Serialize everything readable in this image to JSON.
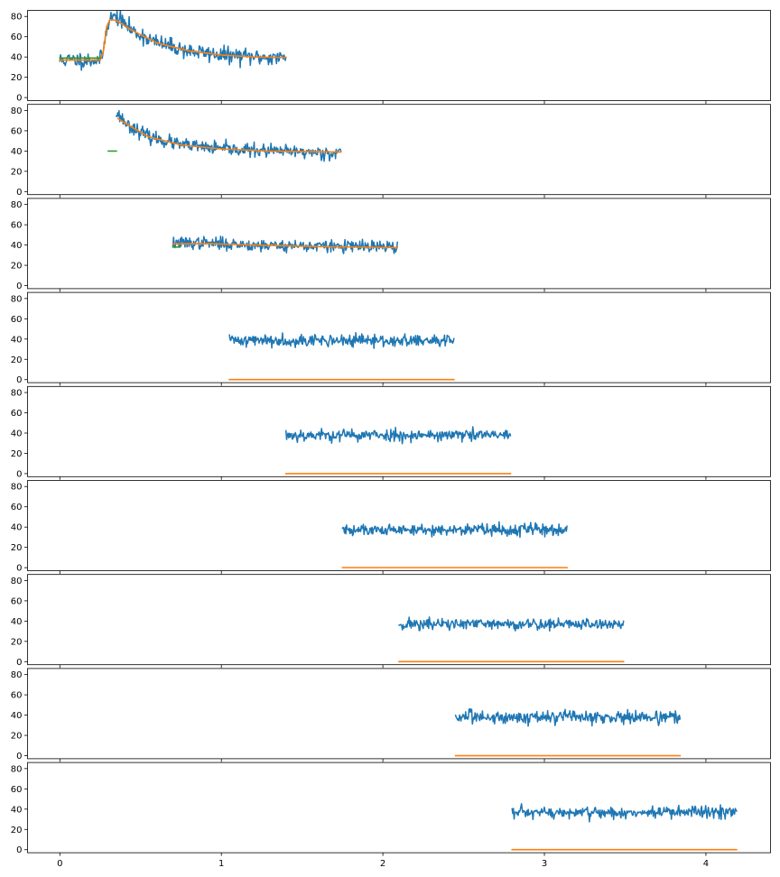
{
  "figure": {
    "shared_x_ticks": [
      "0",
      "1",
      "2",
      "3",
      "4"
    ],
    "shared_y_ticks": [
      "0",
      "20",
      "40",
      "60",
      "80"
    ]
  },
  "chart_data": [
    {
      "type": "line",
      "panel": 1,
      "xlim": [
        -0.2,
        4.4
      ],
      "ylim": [
        -3,
        86
      ],
      "x_ticks": [
        0,
        1,
        2,
        3,
        4
      ],
      "y_ticks": [
        0,
        20,
        40,
        60,
        80
      ],
      "series": [
        {
          "role": "signal",
          "color": "#1f77b4",
          "noise": 4.0,
          "seed": 11,
          "points": [
            [
              0.0,
              37
            ],
            [
              0.25,
              37
            ],
            [
              0.27,
              46
            ],
            [
              0.29,
              70
            ],
            [
              0.31,
              78
            ],
            [
              0.35,
              80
            ],
            [
              0.45,
              66
            ],
            [
              0.6,
              54
            ],
            [
              0.8,
              46
            ],
            [
              1.0,
              42
            ],
            [
              1.2,
              40
            ],
            [
              1.4,
              39
            ]
          ]
        },
        {
          "role": "fit",
          "color": "#ff7f0e",
          "points": [
            [
              0.0,
              37
            ],
            [
              0.25,
              37
            ],
            [
              0.27,
              46
            ],
            [
              0.29,
              70
            ],
            [
              0.31,
              77
            ],
            [
              0.35,
              76
            ],
            [
              0.45,
              66
            ],
            [
              0.6,
              54
            ],
            [
              0.8,
              46
            ],
            [
              1.0,
              42
            ],
            [
              1.2,
              40
            ],
            [
              1.4,
              39.5
            ]
          ]
        },
        {
          "role": "baseline",
          "color": "#2ca02c",
          "points": [
            [
              0.0,
              39
            ],
            [
              0.25,
              39
            ]
          ]
        }
      ]
    },
    {
      "type": "line",
      "panel": 2,
      "xlim": [
        -0.2,
        4.4
      ],
      "ylim": [
        -3,
        86
      ],
      "x_ticks": [
        0,
        1,
        2,
        3,
        4
      ],
      "y_ticks": [
        0,
        20,
        40,
        60,
        80
      ],
      "series": [
        {
          "role": "signal",
          "color": "#1f77b4",
          "noise": 3.2,
          "seed": 23,
          "points": [
            [
              0.35,
              78
            ],
            [
              0.42,
              66
            ],
            [
              0.55,
              54
            ],
            [
              0.75,
              46
            ],
            [
              1.0,
              42
            ],
            [
              1.3,
              40
            ],
            [
              1.74,
              38
            ]
          ]
        },
        {
          "role": "fit",
          "color": "#ff7f0e",
          "points": [
            [
              0.36,
              72
            ],
            [
              0.42,
              66
            ],
            [
              0.55,
              54
            ],
            [
              0.75,
              46
            ],
            [
              1.0,
              42
            ],
            [
              1.3,
              40
            ],
            [
              1.74,
              39
            ]
          ]
        },
        {
          "role": "baseline",
          "color": "#2ca02c",
          "points": [
            [
              0.3,
              40
            ],
            [
              0.35,
              40
            ]
          ]
        }
      ]
    },
    {
      "type": "line",
      "panel": 3,
      "xlim": [
        -0.2,
        4.4
      ],
      "ylim": [
        -3,
        86
      ],
      "x_ticks": [
        0,
        1,
        2,
        3,
        4
      ],
      "y_ticks": [
        0,
        20,
        40,
        60,
        80
      ],
      "series": [
        {
          "role": "signal",
          "color": "#1f77b4",
          "noise": 3.0,
          "seed": 37,
          "points": [
            [
              0.7,
              42
            ],
            [
              0.9,
              42
            ],
            [
              1.2,
              40
            ],
            [
              1.6,
              39
            ],
            [
              2.09,
              38
            ]
          ]
        },
        {
          "role": "fit",
          "color": "#ff7f0e",
          "points": [
            [
              0.7,
              41
            ],
            [
              0.9,
              41.5
            ],
            [
              1.2,
              40
            ],
            [
              1.6,
              38.5
            ],
            [
              2.09,
              37.5
            ]
          ]
        },
        {
          "role": "baseline",
          "color": "#2ca02c",
          "points": [
            [
              0.7,
              38
            ],
            [
              0.74,
              38
            ]
          ]
        }
      ]
    },
    {
      "type": "line",
      "panel": 4,
      "xlim": [
        -0.2,
        4.4
      ],
      "ylim": [
        -3,
        86
      ],
      "x_ticks": [
        0,
        1,
        2,
        3,
        4
      ],
      "y_ticks": [
        0,
        20,
        40,
        60,
        80
      ],
      "series": [
        {
          "role": "signal",
          "color": "#1f77b4",
          "noise": 3.0,
          "seed": 41,
          "points": [
            [
              1.05,
              39
            ],
            [
              2.44,
              38
            ]
          ]
        },
        {
          "role": "fit",
          "color": "#ff7f0e",
          "points": [
            [
              1.05,
              0
            ],
            [
              2.44,
              0
            ]
          ]
        }
      ]
    },
    {
      "type": "line",
      "panel": 5,
      "xlim": [
        -0.2,
        4.4
      ],
      "ylim": [
        -3,
        86
      ],
      "x_ticks": [
        0,
        1,
        2,
        3,
        4
      ],
      "y_ticks": [
        0,
        20,
        40,
        60,
        80
      ],
      "series": [
        {
          "role": "signal",
          "color": "#1f77b4",
          "noise": 3.0,
          "seed": 53,
          "points": [
            [
              1.4,
              38
            ],
            [
              2.79,
              38
            ]
          ]
        },
        {
          "role": "fit",
          "color": "#ff7f0e",
          "points": [
            [
              1.4,
              0
            ],
            [
              2.79,
              0
            ]
          ]
        }
      ]
    },
    {
      "type": "line",
      "panel": 6,
      "xlim": [
        -0.2,
        4.4
      ],
      "ylim": [
        -3,
        86
      ],
      "x_ticks": [
        0,
        1,
        2,
        3,
        4
      ],
      "y_ticks": [
        0,
        20,
        40,
        60,
        80
      ],
      "series": [
        {
          "role": "signal",
          "color": "#1f77b4",
          "noise": 3.0,
          "seed": 61,
          "points": [
            [
              1.75,
              37
            ],
            [
              3.14,
              38
            ]
          ]
        },
        {
          "role": "fit",
          "color": "#ff7f0e",
          "points": [
            [
              1.75,
              0
            ],
            [
              3.14,
              0
            ]
          ]
        }
      ]
    },
    {
      "type": "line",
      "panel": 7,
      "xlim": [
        -0.2,
        4.4
      ],
      "ylim": [
        -3,
        86
      ],
      "x_ticks": [
        0,
        1,
        2,
        3,
        4
      ],
      "y_ticks": [
        0,
        20,
        40,
        60,
        80
      ],
      "series": [
        {
          "role": "signal",
          "color": "#1f77b4",
          "noise": 3.0,
          "seed": 71,
          "points": [
            [
              2.1,
              37
            ],
            [
              3.49,
              37
            ]
          ]
        },
        {
          "role": "fit",
          "color": "#ff7f0e",
          "points": [
            [
              2.1,
              0
            ],
            [
              3.49,
              0
            ]
          ]
        }
      ]
    },
    {
      "type": "line",
      "panel": 8,
      "xlim": [
        -0.2,
        4.4
      ],
      "ylim": [
        -3,
        86
      ],
      "x_ticks": [
        0,
        1,
        2,
        3,
        4
      ],
      "y_ticks": [
        0,
        20,
        40,
        60,
        80
      ],
      "series": [
        {
          "role": "signal",
          "color": "#1f77b4",
          "noise": 3.2,
          "seed": 83,
          "points": [
            [
              2.45,
              38
            ],
            [
              3.84,
              38
            ]
          ]
        },
        {
          "role": "fit",
          "color": "#ff7f0e",
          "points": [
            [
              2.45,
              0
            ],
            [
              3.84,
              0
            ]
          ]
        }
      ]
    },
    {
      "type": "line",
      "panel": 9,
      "xlim": [
        -0.2,
        4.4
      ],
      "ylim": [
        -3,
        86
      ],
      "x_ticks": [
        0,
        1,
        2,
        3,
        4
      ],
      "y_ticks": [
        0,
        20,
        40,
        60,
        80
      ],
      "series": [
        {
          "role": "signal",
          "color": "#1f77b4",
          "noise": 3.0,
          "seed": 97,
          "points": [
            [
              2.8,
              36
            ],
            [
              4.19,
              37
            ]
          ]
        },
        {
          "role": "fit",
          "color": "#ff7f0e",
          "points": [
            [
              2.8,
              0
            ],
            [
              4.19,
              0
            ]
          ]
        }
      ]
    }
  ]
}
